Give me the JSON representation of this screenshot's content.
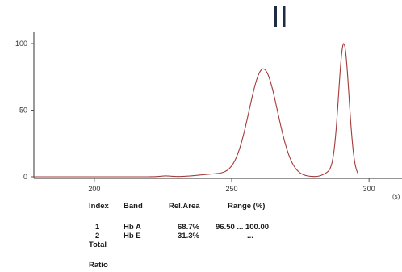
{
  "chart_data": {
    "type": "line",
    "xlabel": "",
    "ylabel": "",
    "x_unit": "(s)",
    "xlim": [
      178,
      312
    ],
    "ylim": [
      0,
      100
    ],
    "x_ticks": [
      200,
      250,
      300
    ],
    "y_ticks": [
      0,
      50,
      100
    ],
    "grid": false,
    "peaks": [
      {
        "center": 261.5,
        "height": 81,
        "sigma": 5.2
      },
      {
        "center": 290.8,
        "height": 100,
        "sigma": 1.9
      }
    ],
    "baseline_bumps": [
      {
        "center": 226,
        "height": 0.6,
        "sigma": 2.0
      },
      {
        "center": 244,
        "height": 2.0,
        "sigma": 6.0
      },
      {
        "center": 285.5,
        "height": 3.0,
        "sigma": 2.0
      }
    ],
    "series": [
      {
        "x": [
          178,
          220,
          226,
          236,
          244,
          250,
          254,
          258,
          261.5,
          264,
          268,
          272,
          276,
          280,
          284,
          287,
          289,
          290.8,
          292,
          294,
          296
        ],
        "y": [
          0,
          0.2,
          0.6,
          1.2,
          2.0,
          8,
          30,
          63,
          81,
          72,
          40,
          12,
          1,
          1.5,
          3,
          10,
          60,
          100,
          70,
          5,
          0
        ]
      }
    ],
    "table": {
      "headers": [
        "Index",
        "Band",
        "Rel.Area",
        "Range (%)"
      ],
      "rows": [
        [
          "1",
          "Hb A",
          "68.7%",
          "96.50 ... 100.00"
        ],
        [
          "2",
          "Hb E",
          "31.3%",
          "..."
        ]
      ],
      "total_label": "Total",
      "ratio_label": "Ratio"
    }
  }
}
